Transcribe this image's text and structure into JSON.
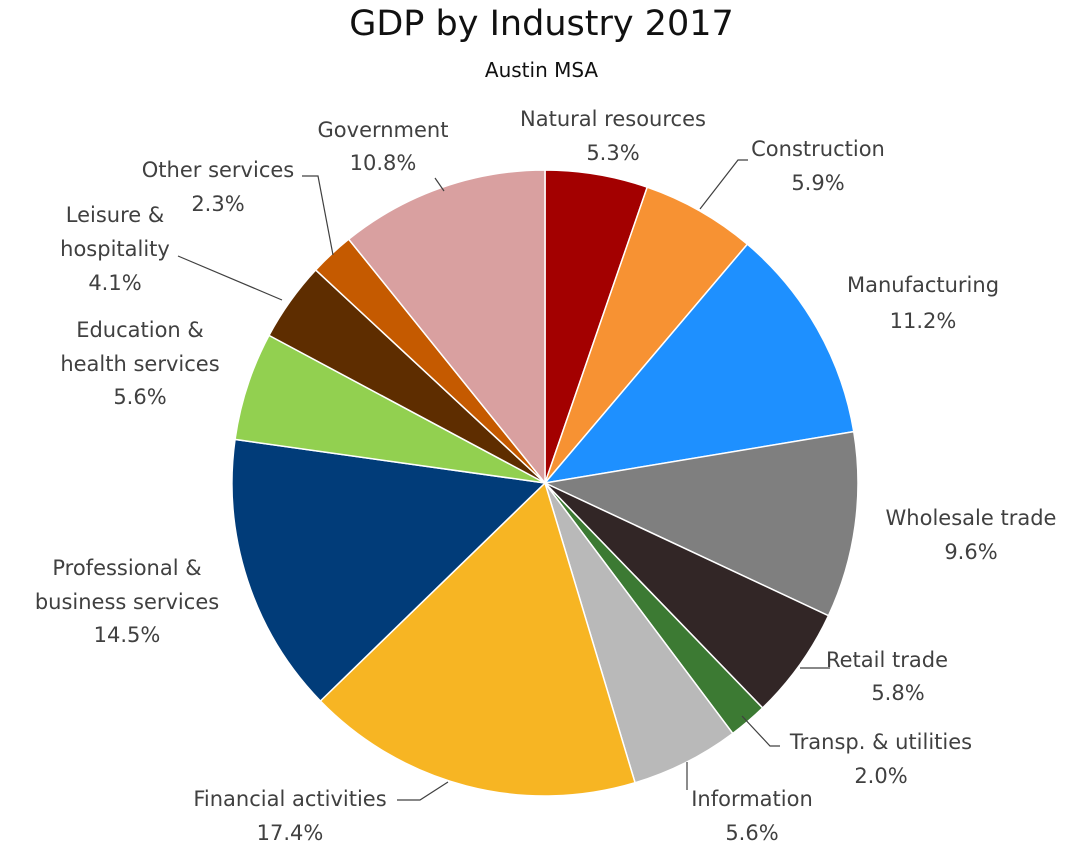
{
  "chart_data": {
    "type": "pie",
    "title": "GDP by Industry 2017",
    "subtitle": "Austin MSA",
    "slices": [
      {
        "label": "Natural resources",
        "value": 5.3,
        "display": "5.3%",
        "color": "#A30000"
      },
      {
        "label": "Construction",
        "value": 5.9,
        "display": "5.9%",
        "color": "#F79233"
      },
      {
        "label": "Manufacturing",
        "value": 11.2,
        "display": "11.2%",
        "color": "#1E90FF"
      },
      {
        "label": "Wholesale trade",
        "value": 9.6,
        "display": "9.6%",
        "color": "#7F7F7F"
      },
      {
        "label": "Retail trade",
        "value": 5.8,
        "display": "5.8%",
        "color": "#322626"
      },
      {
        "label": "Transp. & utilities",
        "value": 2.0,
        "display": "2.0%",
        "color": "#3C7A33"
      },
      {
        "label": "Information",
        "value": 5.6,
        "display": "5.6%",
        "color": "#B9B9B9"
      },
      {
        "label": "Financial activities",
        "value": 17.4,
        "display": "17.4%",
        "color": "#F7B523"
      },
      {
        "label": "Professional & business services",
        "value": 14.5,
        "display": "14.5%",
        "color": "#013C79"
      },
      {
        "label": "Education & health services",
        "value": 5.6,
        "display": "5.6%",
        "color": "#92D050"
      },
      {
        "label": "Leisure & hospitality",
        "value": 4.1,
        "display": "4.1%",
        "color": "#5E2D00"
      },
      {
        "label": "Other services",
        "value": 2.3,
        "display": "2.3%",
        "color": "#C55A00"
      },
      {
        "label": "Government",
        "value": 10.8,
        "display": "10.8%",
        "color": "#D9A0A0"
      }
    ]
  }
}
